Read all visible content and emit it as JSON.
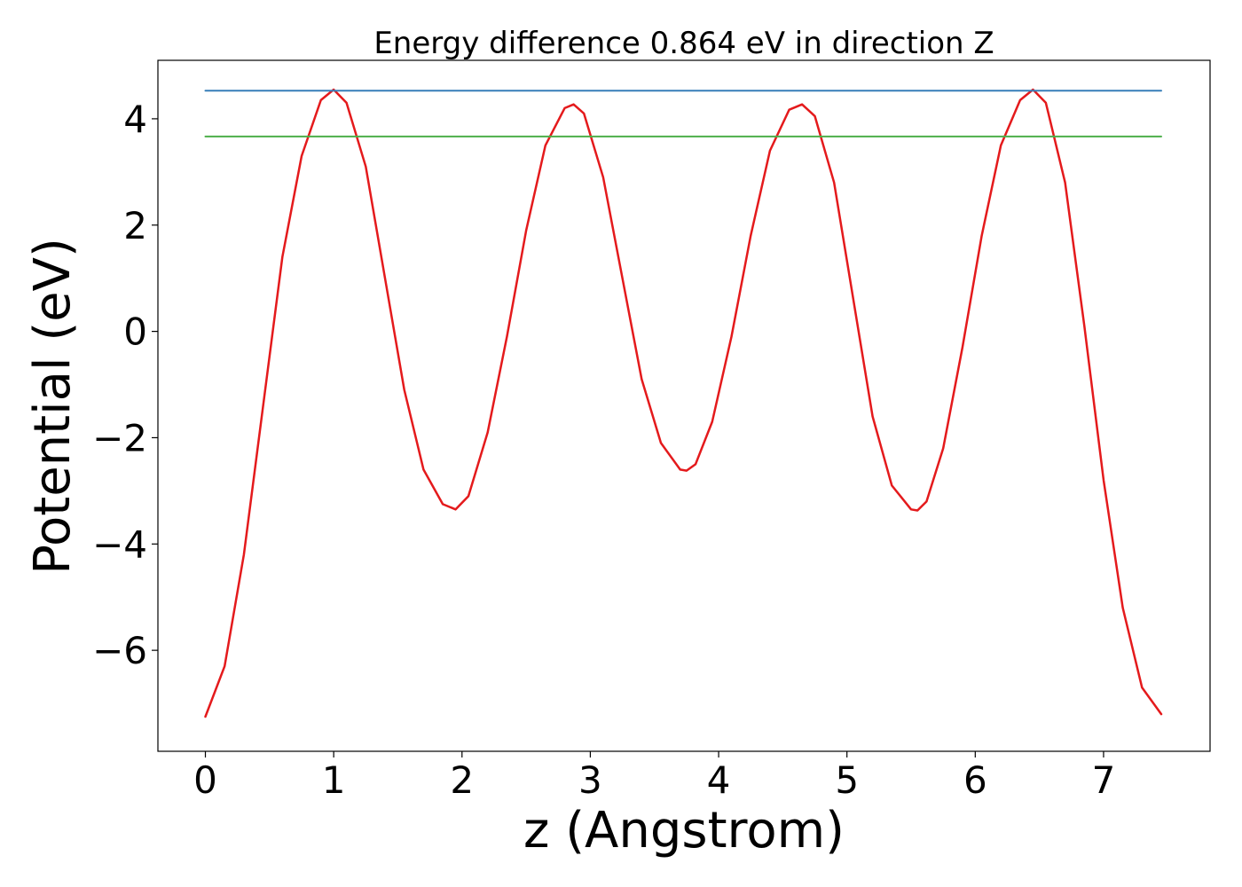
{
  "chart_data": {
    "type": "line",
    "title": "Energy difference 0.864 eV in direction Z",
    "xlabel": "z (Angstrom)",
    "ylabel": "Potential (eV)",
    "xlim": [
      -0.37,
      7.83
    ],
    "ylim": [
      -7.9,
      5.1
    ],
    "xticks": [
      0,
      1,
      2,
      3,
      4,
      5,
      6,
      7
    ],
    "xtick_labels": [
      "0",
      "1",
      "2",
      "3",
      "4",
      "5",
      "6",
      "7"
    ],
    "yticks": [
      4,
      2,
      0,
      -2,
      -4,
      -6
    ],
    "ytick_labels": [
      "4",
      "2",
      "0",
      "−2",
      "−4",
      "−6"
    ],
    "grid": false,
    "series": [
      {
        "name": "potential",
        "color": "#e41a1c",
        "x": [
          0.0,
          0.15,
          0.3,
          0.45,
          0.6,
          0.75,
          0.9,
          1.0,
          1.1,
          1.25,
          1.4,
          1.55,
          1.7,
          1.85,
          1.95,
          2.05,
          2.2,
          2.35,
          2.5,
          2.65,
          2.8,
          2.87,
          2.95,
          3.1,
          3.25,
          3.4,
          3.55,
          3.7,
          3.75,
          3.82,
          3.95,
          4.1,
          4.25,
          4.4,
          4.55,
          4.65,
          4.75,
          4.9,
          5.05,
          5.2,
          5.35,
          5.5,
          5.55,
          5.62,
          5.75,
          5.9,
          6.05,
          6.2,
          6.35,
          6.45,
          6.55,
          6.7,
          6.85,
          7.0,
          7.15,
          7.3,
          7.45
        ],
        "values": [
          -7.25,
          -6.3,
          -4.2,
          -1.4,
          1.4,
          3.3,
          4.35,
          4.55,
          4.3,
          3.1,
          1.0,
          -1.1,
          -2.6,
          -3.25,
          -3.35,
          -3.1,
          -1.9,
          -0.1,
          1.9,
          3.5,
          4.2,
          4.27,
          4.1,
          2.9,
          1.0,
          -0.9,
          -2.1,
          -2.6,
          -2.62,
          -2.5,
          -1.7,
          -0.1,
          1.8,
          3.4,
          4.17,
          4.27,
          4.05,
          2.8,
          0.6,
          -1.6,
          -2.9,
          -3.35,
          -3.37,
          -3.2,
          -2.2,
          -0.3,
          1.8,
          3.5,
          4.35,
          4.55,
          4.3,
          2.8,
          0.1,
          -2.8,
          -5.2,
          -6.7,
          -7.2
        ]
      },
      {
        "name": "upper level",
        "color": "#377eb8",
        "x": [
          0.0,
          7.45
        ],
        "values": [
          4.53,
          4.53
        ]
      },
      {
        "name": "lower level",
        "color": "#4daf4a",
        "x": [
          0.0,
          7.45
        ],
        "values": [
          3.666,
          3.666
        ]
      }
    ]
  }
}
